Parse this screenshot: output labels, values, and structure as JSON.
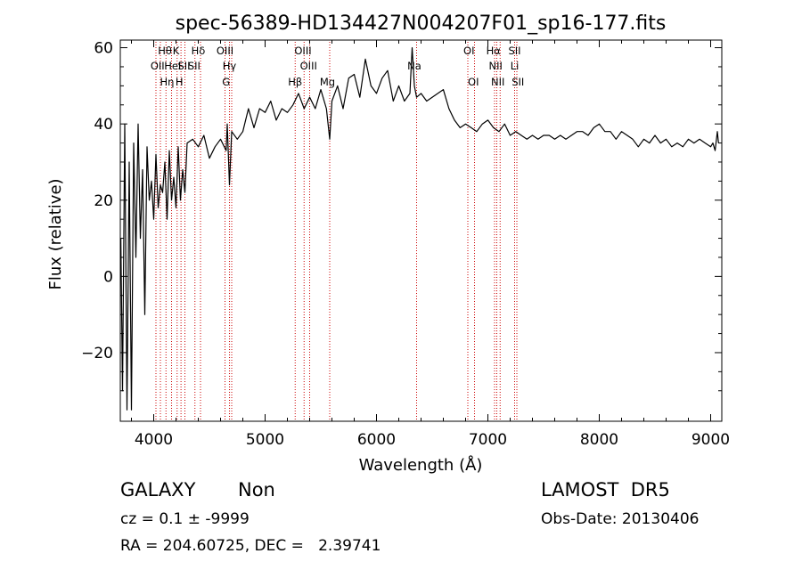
{
  "chart_data": {
    "type": "line",
    "title": "spec-56389-HD134427N004207F01_sp16-177.fits",
    "xlabel": "Wavelength (Å)",
    "ylabel": "Flux (relative)",
    "xlim": [
      3700,
      9100
    ],
    "ylim": [
      -38,
      62
    ],
    "x_ticks": [
      4000,
      5000,
      6000,
      7000,
      8000,
      9000
    ],
    "y_ticks": [
      -20,
      0,
      20,
      40,
      60
    ],
    "grid": false,
    "line_color": "#000000",
    "marker_color": "#cc0000",
    "series": [
      {
        "x": [
          3705,
          3720,
          3740,
          3760,
          3780,
          3800,
          3820,
          3840,
          3860,
          3880,
          3900,
          3920,
          3940,
          3960,
          3980,
          4000,
          4020,
          4040,
          4060,
          4080,
          4100,
          4120,
          4140,
          4160,
          4180,
          4200,
          4220,
          4240,
          4260,
          4280,
          4300,
          4350,
          4400,
          4450,
          4500,
          4550,
          4600,
          4650,
          4660,
          4680,
          4700,
          4750,
          4800,
          4850,
          4900,
          4950,
          5000,
          5050,
          5100,
          5150,
          5200,
          5250,
          5300,
          5350,
          5400,
          5450,
          5500,
          5550,
          5580,
          5600,
          5650,
          5700,
          5750,
          5800,
          5850,
          5900,
          5950,
          6000,
          6050,
          6100,
          6150,
          6200,
          6250,
          6300,
          6320,
          6340,
          6360,
          6400,
          6450,
          6500,
          6550,
          6600,
          6650,
          6700,
          6750,
          6800,
          6850,
          6900,
          6950,
          7000,
          7050,
          7100,
          7150,
          7200,
          7250,
          7300,
          7350,
          7400,
          7450,
          7500,
          7550,
          7600,
          7650,
          7700,
          7750,
          7800,
          7850,
          7900,
          7950,
          8000,
          8050,
          8100,
          8150,
          8200,
          8250,
          8300,
          8350,
          8400,
          8450,
          8500,
          8550,
          8600,
          8650,
          8700,
          8750,
          8800,
          8850,
          8900,
          8950,
          9000,
          9020,
          9040,
          9060,
          9070
        ],
        "y": [
          10,
          -30,
          40,
          -35,
          30,
          -35,
          35,
          5,
          40,
          10,
          28,
          -10,
          34,
          20,
          25,
          15,
          32,
          18,
          24,
          22,
          30,
          15,
          33,
          20,
          26,
          18,
          34,
          20,
          28,
          22,
          35,
          36,
          34,
          37,
          31,
          34,
          36,
          33,
          40,
          24,
          38,
          36,
          38,
          44,
          39,
          44,
          43,
          46,
          41,
          44,
          43,
          45,
          48,
          44,
          47,
          44,
          49,
          44,
          36,
          46,
          50,
          44,
          52,
          53,
          47,
          57,
          50,
          48,
          52,
          54,
          46,
          50,
          46,
          48,
          60,
          50,
          47,
          48,
          46,
          47,
          48,
          49,
          44,
          41,
          39,
          40,
          39,
          38,
          40,
          41,
          39,
          38,
          40,
          37,
          38,
          37,
          36,
          37,
          36,
          37,
          37,
          36,
          37,
          36,
          37,
          38,
          38,
          37,
          39,
          40,
          38,
          38,
          36,
          38,
          37,
          36,
          34,
          36,
          35,
          37,
          35,
          36,
          34,
          35,
          34,
          36,
          35,
          36,
          35,
          34,
          35,
          33,
          38,
          35
        ]
      }
    ],
    "line_markers": [
      {
        "x": 4034,
        "row": 1,
        "label": "OII"
      },
      {
        "x": 4101,
        "row": 0,
        "label": "Hθ"
      },
      {
        "x": 4120,
        "row": 2,
        "label": "Hη"
      },
      {
        "x": 4200,
        "row": 0,
        "label": "K"
      },
      {
        "x": 4230,
        "row": 2,
        "label": "H"
      },
      {
        "x": 4170,
        "row": 1,
        "label": "HeI"
      },
      {
        "x": 4272,
        "row": 1,
        "label": "SII"
      },
      {
        "x": 4400,
        "row": 0,
        "label": "Hδ"
      },
      {
        "x": 4363,
        "row": 1,
        "label": "SII"
      },
      {
        "x": 4640,
        "row": 0,
        "label": "OIII"
      },
      {
        "x": 4650,
        "row": 2,
        "label": "G"
      },
      {
        "x": 4680,
        "row": 1,
        "label": "Hγ"
      },
      {
        "x": 5270,
        "row": 2,
        "label": "Hβ"
      },
      {
        "x": 5340,
        "row": 0,
        "label": "OIII"
      },
      {
        "x": 5390,
        "row": 1,
        "label": "OIII"
      },
      {
        "x": 5560,
        "row": 2,
        "label": "Mg"
      },
      {
        "x": 6340,
        "row": 1,
        "label": "Na"
      },
      {
        "x": 6830,
        "row": 0,
        "label": "OI"
      },
      {
        "x": 6870,
        "row": 2,
        "label": "OI"
      },
      {
        "x": 7050,
        "row": 0,
        "label": "Hα"
      },
      {
        "x": 7070,
        "row": 1,
        "label": "NII"
      },
      {
        "x": 7090,
        "row": 2,
        "label": "NII"
      },
      {
        "x": 7240,
        "row": 0,
        "label": "SII"
      },
      {
        "x": 7240,
        "row": 1,
        "label": "Li"
      },
      {
        "x": 7270,
        "row": 2,
        "label": "SII"
      }
    ],
    "marker_lines_x": [
      4020,
      4060,
      4110,
      4160,
      4210,
      4245,
      4280,
      4370,
      4420,
      4640,
      4680,
      4700,
      5270,
      5350,
      5400,
      5580,
      6360,
      6820,
      6880,
      7060,
      7080,
      7110,
      7240,
      7260
    ]
  },
  "footer": {
    "object_type": "GALAXY",
    "subclass": "Non",
    "survey": "LAMOST  DR5",
    "cz_line": "cz = 0.1 ± -9999",
    "obs_date": "Obs-Date: 20130406",
    "radec_line": "RA = 204.60725, DEC =   2.39741"
  }
}
